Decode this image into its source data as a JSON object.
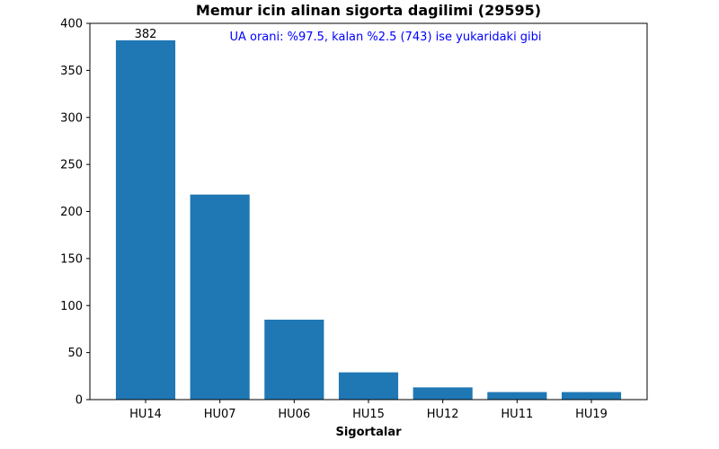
{
  "chart_data": {
    "type": "bar",
    "title": "Memur icin alinan sigorta dagilimi (29595)",
    "xlabel": "Sigortalar",
    "ylabel": "",
    "categories": [
      "HU14",
      "HU07",
      "HU06",
      "HU15",
      "HU12",
      "HU11",
      "HU19"
    ],
    "values": [
      382,
      218,
      85,
      29,
      13,
      8,
      8
    ],
    "data_labels": [
      "382",
      "",
      "",
      "",
      "",
      "",
      ""
    ],
    "ylim": [
      0,
      400
    ],
    "yticks": [
      0,
      50,
      100,
      150,
      200,
      250,
      300,
      350,
      400
    ],
    "bar_color": "#1f77b4",
    "annotation": {
      "text": "UA orani: %97.5, kalan %2.5 (743) ise yukaridaki gibi",
      "color": "#0000ff"
    },
    "grid": false,
    "legend": "none"
  }
}
